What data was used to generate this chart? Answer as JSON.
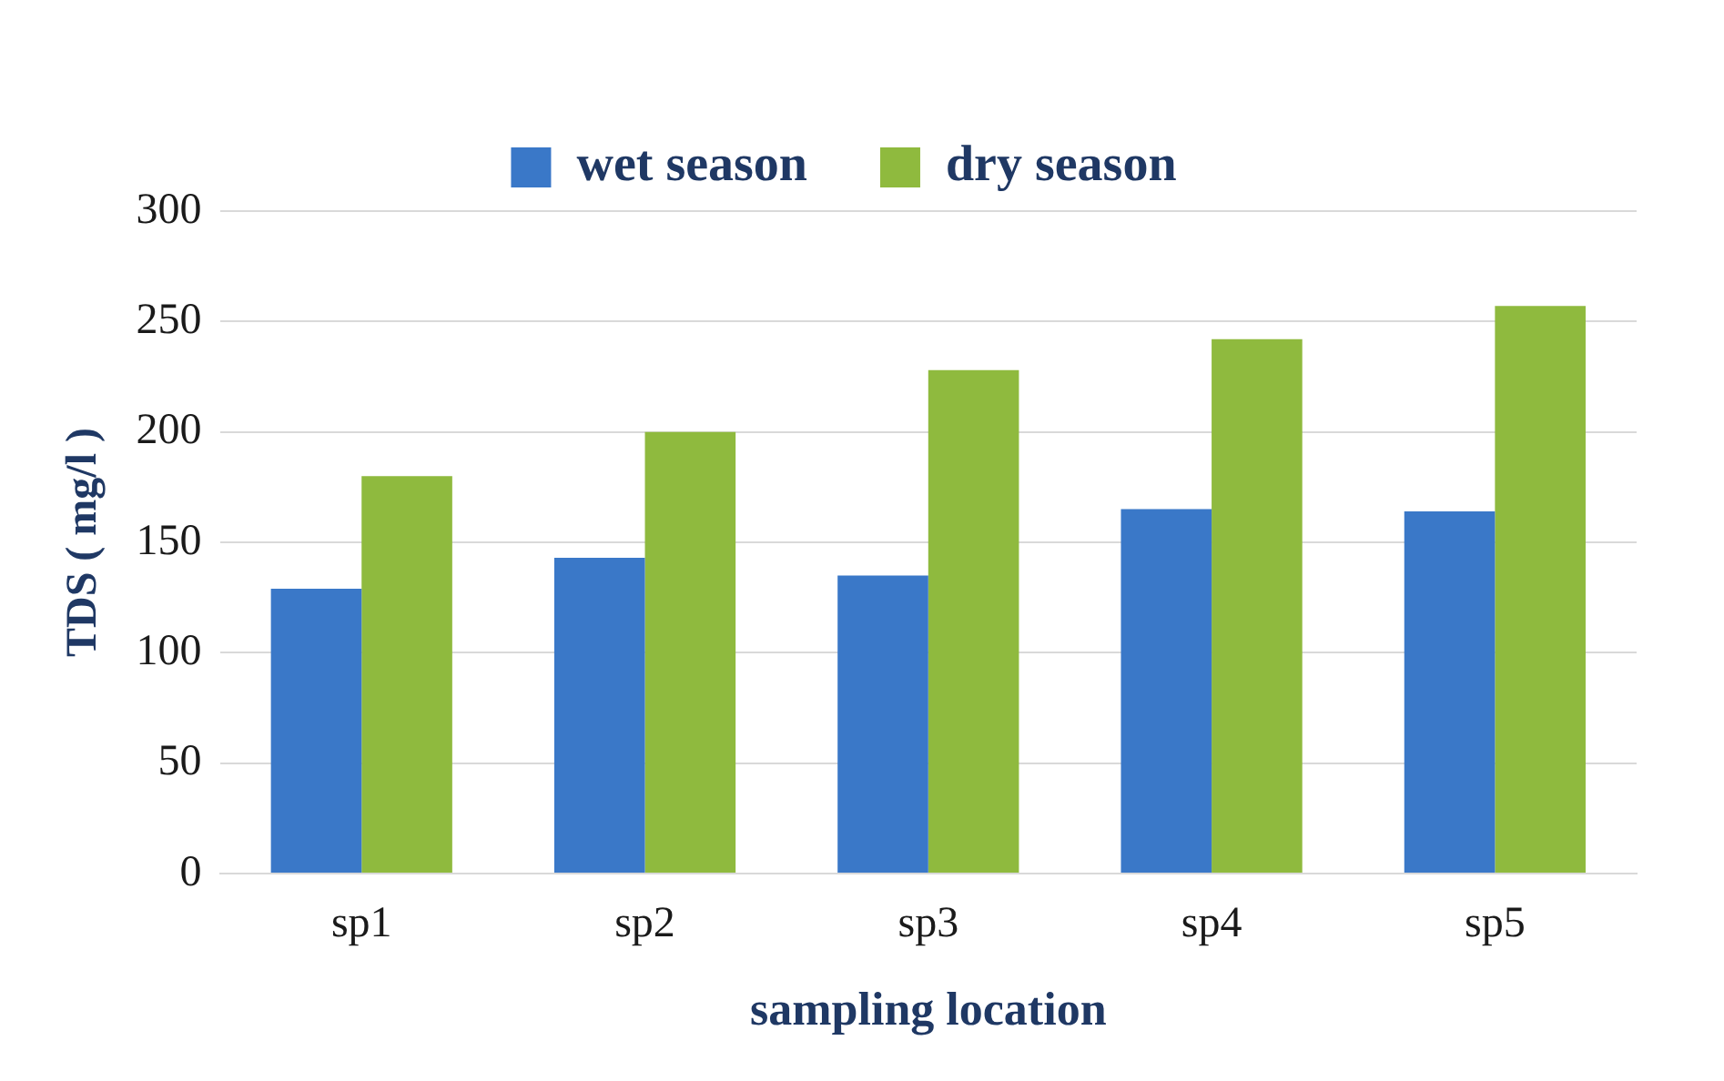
{
  "chart_data": {
    "type": "bar",
    "xlabel": "sampling location",
    "ylabel": "TDS ( mg/l )",
    "categories": [
      "sp1",
      "sp2",
      "sp3",
      "sp4",
      "sp5"
    ],
    "series": [
      {
        "name": "wet season",
        "color": "#3a78c8",
        "values": [
          129,
          143,
          135,
          165,
          164
        ]
      },
      {
        "name": "dry season",
        "color": "#8fba3e",
        "values": [
          180,
          200,
          228,
          242,
          257
        ]
      }
    ],
    "ylim": [
      0,
      300
    ],
    "yticks": [
      0,
      50,
      100,
      150,
      200,
      250,
      300
    ],
    "grid": "y",
    "legend": "top"
  }
}
